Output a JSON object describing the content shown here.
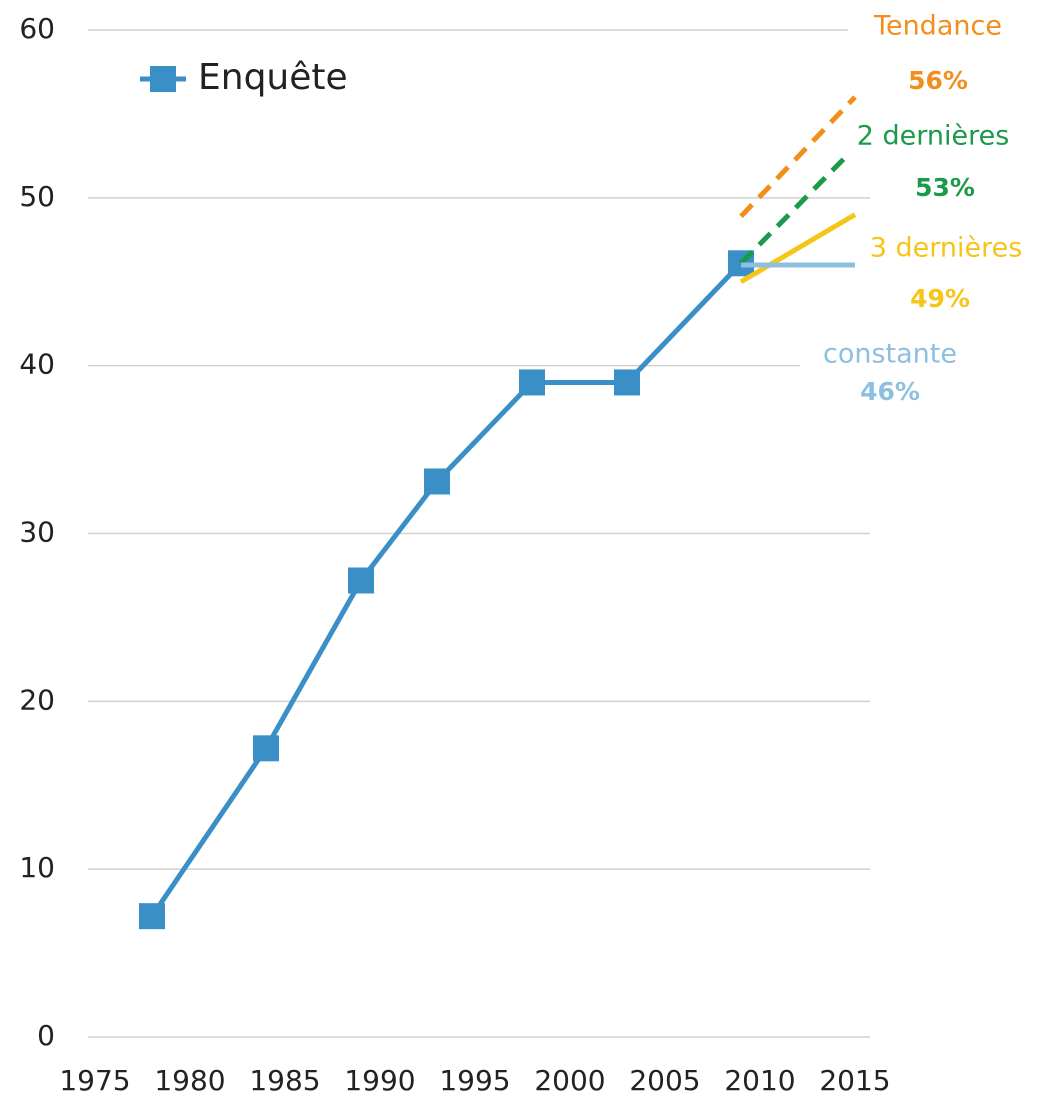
{
  "chart_data": {
    "type": "line",
    "legend": "top-left",
    "grid": true,
    "xlim": [
      1975,
      2015
    ],
    "xticks": [
      1975,
      1980,
      1985,
      1990,
      1995,
      2000,
      2005,
      2010,
      2015
    ],
    "ylim": [
      0,
      60
    ],
    "yticks": [
      0,
      10,
      20,
      30,
      40,
      50,
      60
    ],
    "series": [
      {
        "name": "Enquête",
        "color": "#3a8fc6",
        "marker": "square",
        "x": [
          1978,
          1984,
          1989,
          1993,
          1998,
          2003,
          2009
        ],
        "values": [
          7.2,
          17.2,
          27.2,
          33.1,
          39,
          39,
          46.1
        ]
      },
      {
        "name": "Tendance",
        "color": "#f28e1c",
        "dash": true,
        "x": [
          2009,
          2015
        ],
        "values": [
          48.9,
          56
        ],
        "value_labels": [
          null,
          "56%"
        ]
      },
      {
        "name": "2 dernières",
        "color": "#1b9a4a",
        "dash": true,
        "x": [
          2009,
          2015
        ],
        "values": [
          46.1,
          53
        ],
        "value_labels": [
          null,
          "53%"
        ]
      },
      {
        "name": "3 dernières",
        "color": "#f5c518",
        "x": [
          2009,
          2015
        ],
        "values": [
          45,
          49
        ],
        "value_labels": [
          null,
          "49%"
        ]
      },
      {
        "name": "constante",
        "color": "#8dc0e0",
        "x": [
          2009,
          2015
        ],
        "values": [
          46,
          46
        ],
        "value_labels": [
          null,
          "46%"
        ]
      }
    ]
  }
}
